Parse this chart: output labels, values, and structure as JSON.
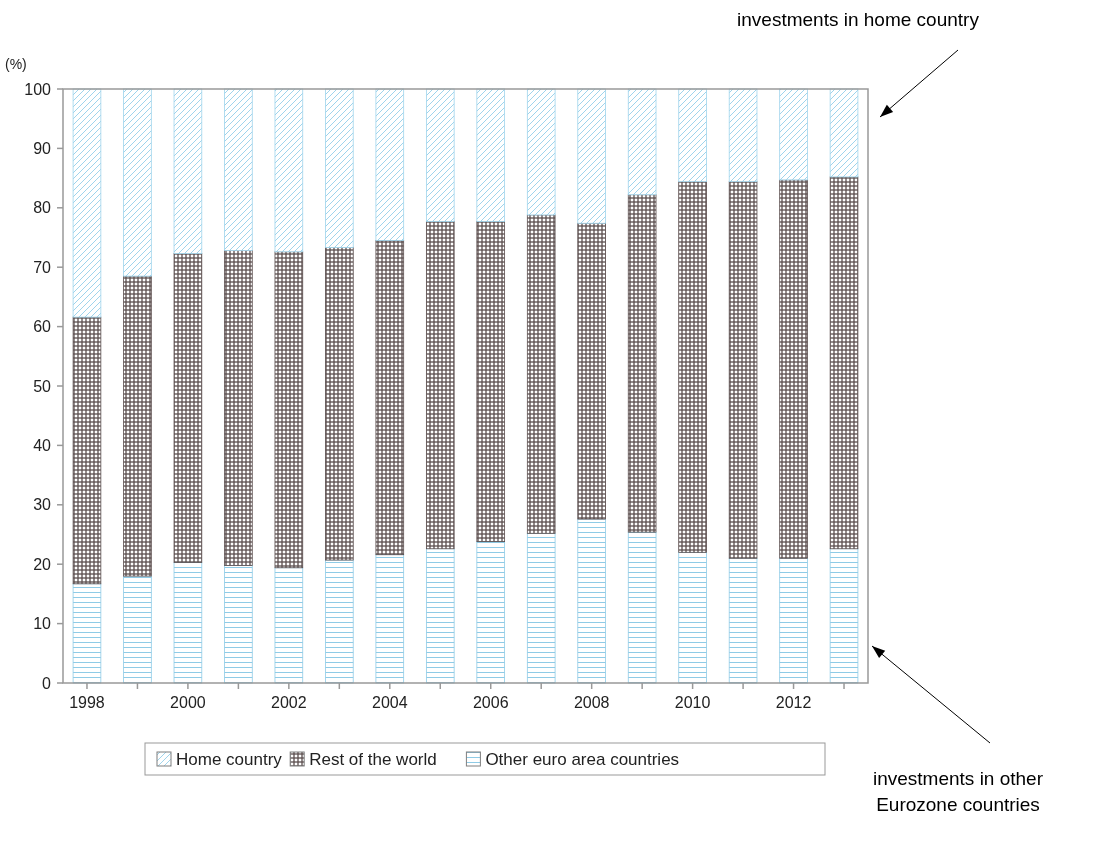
{
  "chart_data": {
    "type": "bar",
    "stacked": true,
    "ylabel": "(%)",
    "categories": [
      "1998",
      null,
      "2000",
      null,
      "2002",
      null,
      "2004",
      null,
      "2006",
      null,
      "2008",
      null,
      "2010",
      null,
      "2012",
      null
    ],
    "series": [
      {
        "name": "Other euro area countries",
        "color": "#8fcbe6",
        "values": [
          16.7,
          18.0,
          20.3,
          19.8,
          19.4,
          20.7,
          21.6,
          22.6,
          23.8,
          25.2,
          27.6,
          25.4,
          22.0,
          21.0,
          21.0,
          22.6
        ]
      },
      {
        "name": "Rest of the world",
        "color": "#5a4d4d",
        "values": [
          44.9,
          50.5,
          52.0,
          53.0,
          53.2,
          52.6,
          52.9,
          55.1,
          53.9,
          53.6,
          49.8,
          56.8,
          62.4,
          63.4,
          63.7,
          62.6
        ]
      },
      {
        "name": "Home country",
        "color": "#9fd4ec",
        "values": [
          38.4,
          31.5,
          27.7,
          27.2,
          27.4,
          26.7,
          25.5,
          22.3,
          22.3,
          21.2,
          22.6,
          17.8,
          15.6,
          15.6,
          15.3,
          14.8
        ]
      }
    ],
    "ylim": [
      0,
      100
    ],
    "yticks": [
      0,
      10,
      20,
      30,
      40,
      50,
      60,
      70,
      80,
      90,
      100
    ],
    "grid": false,
    "legend": "bottom",
    "annotations": [
      "investments in home country",
      "investments in other Eurozone countries"
    ]
  }
}
